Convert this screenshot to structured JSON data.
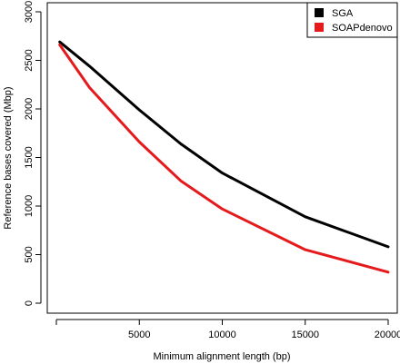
{
  "chart_data": {
    "type": "line",
    "title": "",
    "xlabel": "Minimum alignment length (bp)",
    "ylabel": "Reference bases covered (Mbp)",
    "xlim": [
      0,
      20000
    ],
    "ylim": [
      0,
      3000
    ],
    "x_ticks": [
      0,
      5000,
      10000,
      15000,
      20000
    ],
    "x_tick_labels": [
      "",
      "5000",
      "10000",
      "15000",
      "20000"
    ],
    "y_ticks": [
      0,
      500,
      1000,
      1500,
      2000,
      2500,
      3000
    ],
    "y_tick_labels": [
      "0",
      "500",
      "1000",
      "1500",
      "2000",
      "2500",
      "3000"
    ],
    "grid": false,
    "legend_position": "top-right",
    "series": [
      {
        "name": "SGA",
        "color": "#000000",
        "x": [
          200,
          2000,
          5000,
          7500,
          10000,
          15000,
          20000
        ],
        "y": [
          2690,
          2440,
          1990,
          1640,
          1340,
          890,
          580
        ]
      },
      {
        "name": "SOAPdenovo",
        "color": "#e41a1c",
        "x": [
          200,
          2000,
          5000,
          7500,
          10000,
          15000,
          20000
        ],
        "y": [
          2660,
          2220,
          1660,
          1260,
          970,
          550,
          320
        ]
      }
    ]
  }
}
